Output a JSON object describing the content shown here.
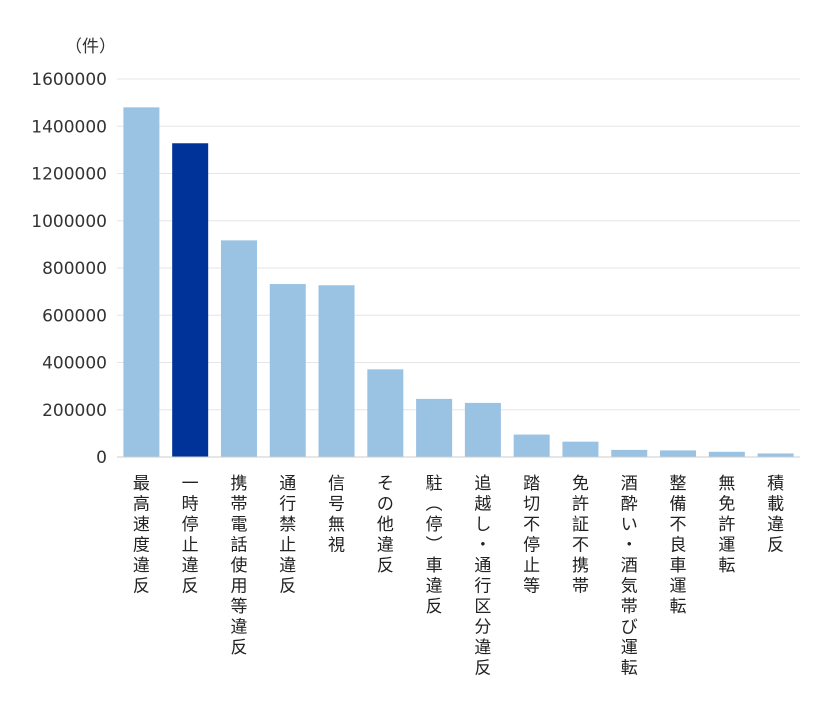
{
  "chart_data": {
    "type": "bar",
    "unit_label": "（件）",
    "ylim": [
      0,
      1600000
    ],
    "yticks": [
      0,
      200000,
      400000,
      600000,
      800000,
      1000000,
      1200000,
      1400000,
      1600000
    ],
    "grid": true,
    "categories": [
      "最高速度違反",
      "一時停止違反",
      "携帯電話使用等違反",
      "通行禁止違反",
      "信号無視",
      "その他違反",
      "駐（停）車違反",
      "追越し・通行区分違反",
      "踏切不停止等",
      "免許証不携帯",
      "酒酔い・酒気帯び運転",
      "整備不良車運転",
      "無免許運転",
      "積載違反"
    ],
    "values": [
      1480000,
      1328000,
      917000,
      732000,
      727000,
      371000,
      246000,
      229000,
      95000,
      65000,
      30000,
      28000,
      22000,
      15000
    ],
    "colors": {
      "default": "#99c2e3",
      "highlight": "#003399"
    },
    "highlight_index": 1
  }
}
